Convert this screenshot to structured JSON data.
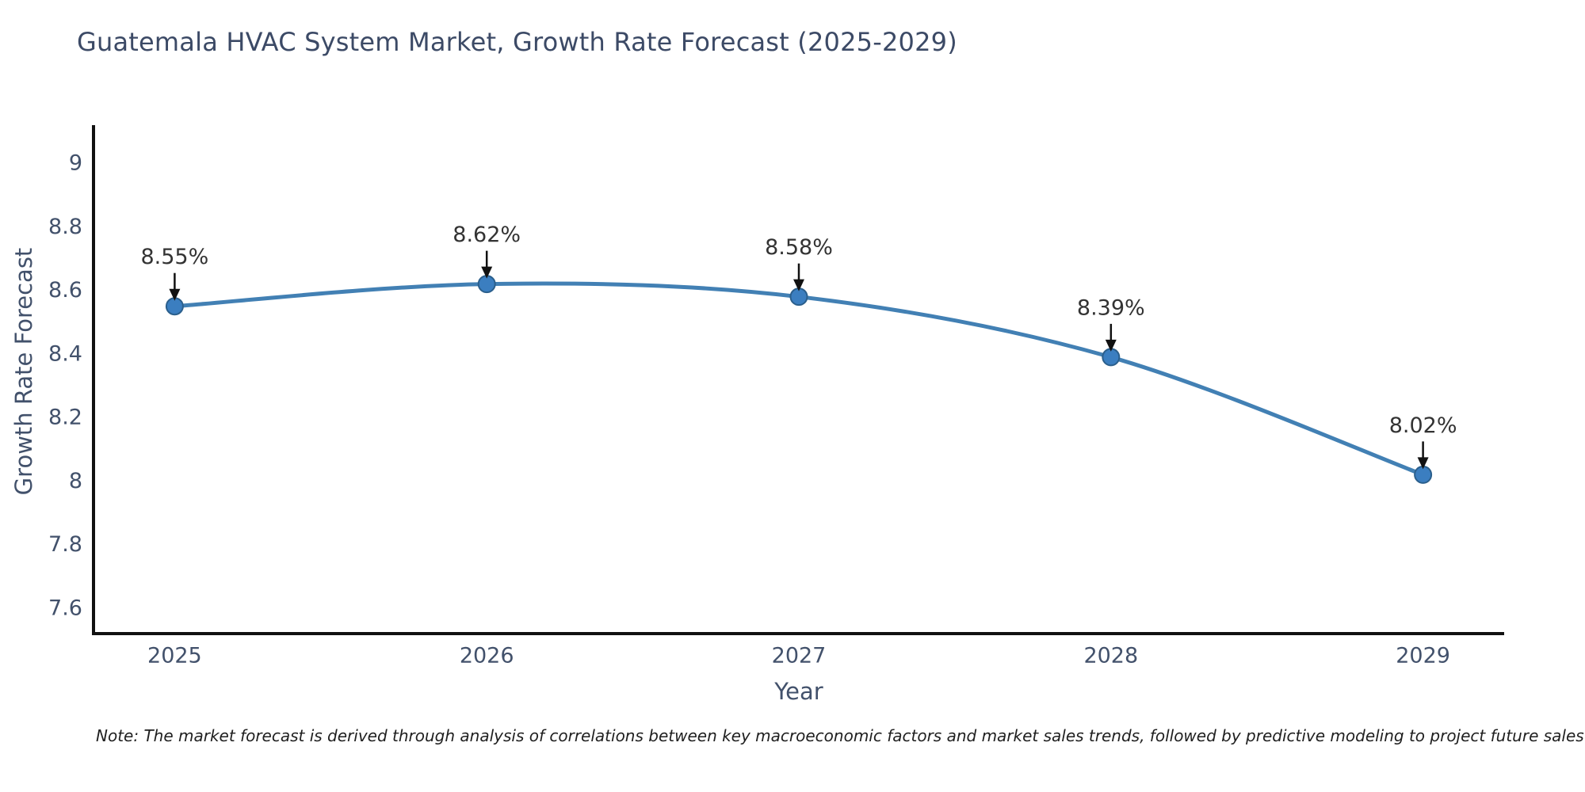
{
  "title": "Guatemala HVAC System Market, Growth Rate Forecast (2025-2029)",
  "note": "Note: The market forecast is derived through analysis of correlations between key macroeconomic factors and market sales trends, followed by predictive modeling to project future sales",
  "chart_data": {
    "type": "line",
    "title": "Guatemala HVAC System Market, Growth Rate Forecast (2025-2029)",
    "xlabel": "Year",
    "ylabel": "Growth Rate Forecast",
    "x": [
      2025,
      2026,
      2027,
      2028,
      2029
    ],
    "categories": [
      "2025",
      "2026",
      "2027",
      "2028",
      "2029"
    ],
    "series": [
      {
        "name": "Growth Rate Forecast",
        "values": [
          8.55,
          8.62,
          8.58,
          8.39,
          8.02
        ]
      }
    ],
    "point_labels": [
      "8.55%",
      "8.62%",
      "8.58%",
      "8.39%",
      "8.02%"
    ],
    "y_ticks": [
      9,
      8.8,
      8.6,
      8.4,
      8.2,
      8,
      7.8,
      7.6
    ],
    "y_tick_labels": [
      "9",
      "8.8",
      "8.6",
      "8.4",
      "8.2",
      "8",
      "7.8",
      "7.6"
    ],
    "ylim": [
      7.52,
      9.12
    ],
    "xlim": [
      2024.74,
      2029.26
    ],
    "grid": false,
    "legend": "none",
    "annotations_style": "black-down-arrows-to-points",
    "colors": {
      "line": "#4280b4",
      "marker_fill": "#3b7ec0",
      "marker_edge": "#2b5f8c",
      "axis": "#111111",
      "tick_label": "#42516b",
      "axis_title": "#42516b",
      "title": "#3c4a66",
      "annotation_text": "#333333",
      "annotation_arrow": "#111111",
      "note": "#1f1f1f",
      "background": "#ffffff"
    }
  }
}
